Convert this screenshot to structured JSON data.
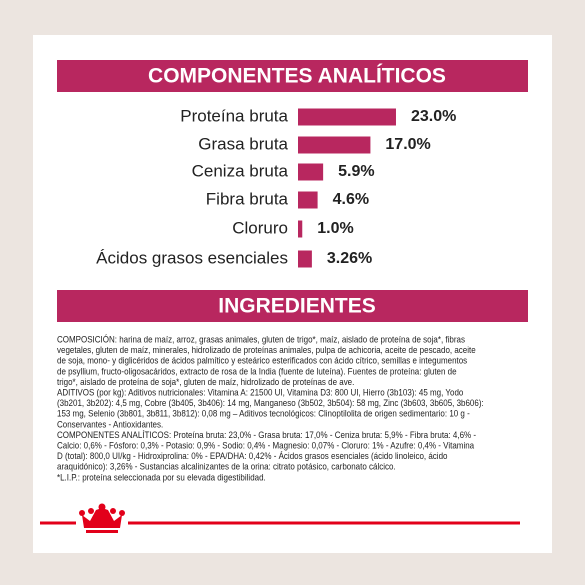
{
  "header": {
    "title": "COMPONENTES ANALÍTICOS"
  },
  "chart_data": {
    "type": "bar",
    "orientation": "horizontal",
    "categories": [
      "Proteína bruta",
      "Grasa bruta",
      "Ceniza bruta",
      "Fibra bruta",
      "Cloruro",
      "Ácidos grasos esenciales"
    ],
    "values": [
      23.0,
      17.0,
      5.9,
      4.6,
      1.0,
      3.26
    ],
    "value_labels": [
      "23.0%",
      "17.0%",
      "5.9%",
      "4.6%",
      "1.0%",
      "3.26%"
    ],
    "color": "#b8275f"
  },
  "ingredients": {
    "title": "INGREDIENTES",
    "lines": [
      "COMPOSICIÓN: harina de maíz, arroz, grasas animales, gluten de trigo*, maíz, aislado de proteína de soja*, fibras",
      "vegetales, gluten de maíz, minerales, hidrolizado de proteínas animales, pulpa de achicoria, aceite de pescado, aceite",
      "de soja, mono- y diglicéridos de ácidos palmítico y esteárico esterificados con ácido cítrico, semillas e integumentos",
      "de psyllium, fructo-oligosacáridos, extracto de rosa de la India (fuente de luteína). Fuentes de proteína: gluten de",
      "trigo*, aislado de proteína de soja*, gluten de maíz, hidrolizado de proteínas de ave.",
      "ADITIVOS (por kg): Aditivos nutricionales: Vitamina A: 21500 UI, Vitamina D3: 800 UI, Hierro (3b103): 45 mg, Yodo",
      "(3b201, 3b202): 4,5 mg, Cobre (3b405, 3b406): 14 mg, Manganeso (3b502, 3b504): 58 mg, Zinc (3b603, 3b605, 3b606):",
      "153 mg, Selenio (3b801, 3b811, 3b812): 0,08 mg – Aditivos tecnológicos: Clinoptilolita de origen sedimentario: 10 g -",
      "Conservantes - Antioxidantes.",
      "COMPONENTES ANALÍTICOS: Proteína bruta: 23,0% - Grasa bruta: 17,0% - Ceniza bruta: 5,9% - Fibra bruta: 4,6% -",
      "Calcio: 0,6% - Fósforo: 0,3% - Potasio: 0,9% - Sodio: 0,4% - Magnesio: 0,07% - Cloruro: 1% - Azufre: 0,4% - Vitamina",
      "D (total): 800,0 UI/kg - Hidroxiprolina: 0% - EPA/DHA: 0,42% - Ácidos grasos esenciales (ácido linoleico, ácido",
      "araquidónico): 3,26% - Sustancias alcalinizantes de la orina: citrato potásico, carbonato cálcico.",
      "*L.I.P.: proteína seleccionada por su elevada digestibilidad."
    ]
  }
}
